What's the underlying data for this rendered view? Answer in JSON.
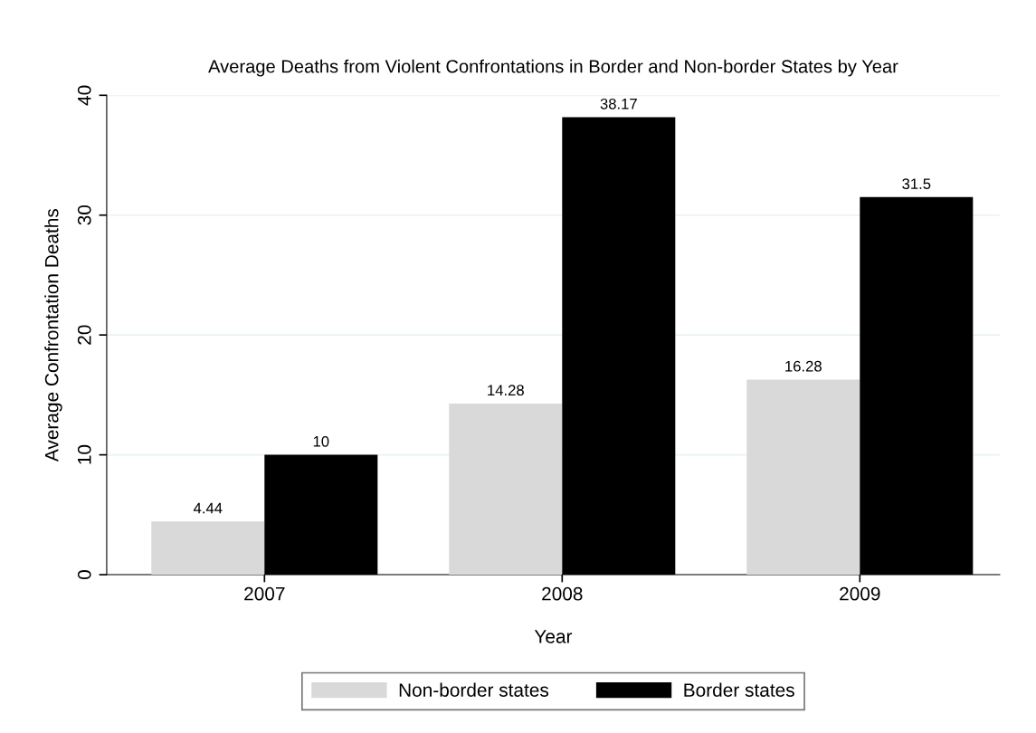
{
  "chart_data": {
    "type": "bar",
    "title": "Average Deaths from Violent Confrontations in Border and Non-border States by Year",
    "xlabel": "Year",
    "ylabel": "Average Confrontation Deaths",
    "categories": [
      "2007",
      "2008",
      "2009"
    ],
    "series": [
      {
        "name": "Non-border states",
        "color": "#d9d9d9",
        "values": [
          4.44,
          14.28,
          16.28
        ]
      },
      {
        "name": "Border states",
        "color": "#000000",
        "values": [
          10,
          38.17,
          31.5
        ]
      }
    ],
    "ylim": [
      0,
      40
    ],
    "yticks": [
      0,
      10,
      20,
      30,
      40
    ],
    "grid": "y",
    "legend": "bottom",
    "data_labels": true
  }
}
